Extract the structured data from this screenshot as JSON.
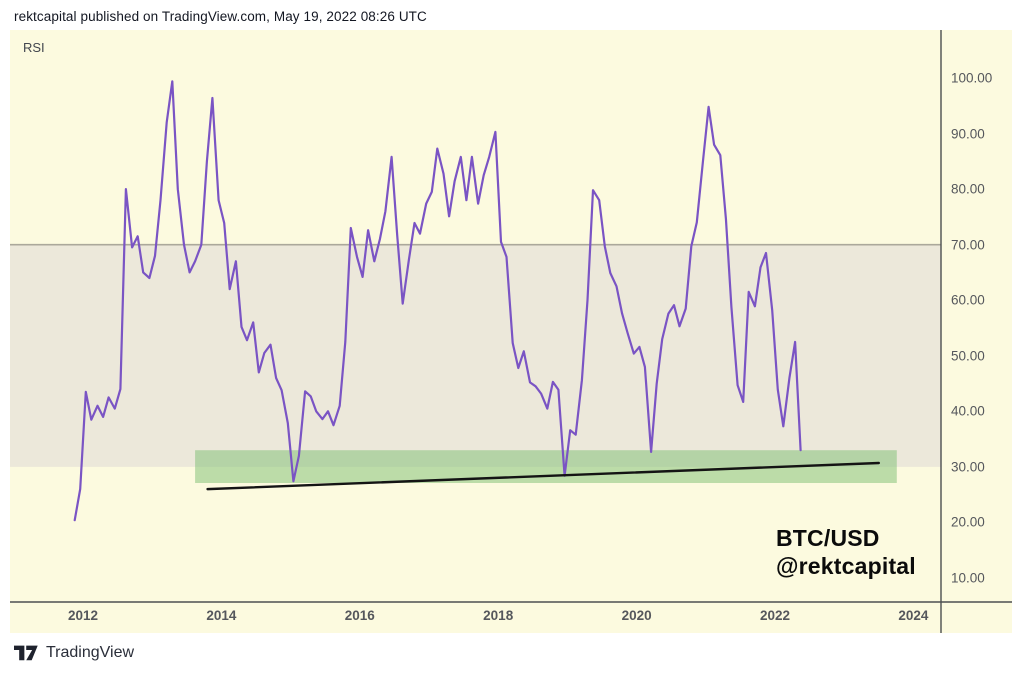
{
  "header": {
    "attribution": "rektcapital published on TradingView.com, May 19, 2022 08:26 UTC"
  },
  "chart": {
    "indicator_label": "RSI",
    "watermark_symbol": "BTC/USD",
    "watermark_handle": "@rektcapital",
    "colors": {
      "background": "#FCFADF",
      "band_fill": "#ECE8DA",
      "rsi_line": "#7A54C4",
      "overbought_line": "#ABA89B",
      "green_zone": "#7CBE72",
      "green_zone_opacity": 0.5,
      "trendline": "#141414",
      "axis_line": "#4c4e50",
      "tick_text": "#55575c"
    }
  },
  "chart_data": {
    "type": "line",
    "title": "",
    "xlabel": "",
    "ylabel": "",
    "legend": "none",
    "grid": "off",
    "xlim": [
      2010.95,
      2024.4
    ],
    "ylim": [
      5.7,
      108.6
    ],
    "x_ticks": [
      2012,
      2014,
      2016,
      2018,
      2020,
      2022,
      2024
    ],
    "x_tick_labels": [
      "2012",
      "2014",
      "2016",
      "2018",
      "2020",
      "2022",
      "2024"
    ],
    "y_ticks": [
      100,
      90,
      80,
      70,
      60,
      50,
      40,
      30,
      20,
      10
    ],
    "y_tick_labels": [
      "100.00",
      "90.00",
      "80.00",
      "70.00",
      "60.00",
      "50.00",
      "40.00",
      "30.00",
      "20.00",
      "10.00"
    ],
    "band": {
      "upper": 70,
      "lower": 30
    },
    "overbought_level": 70,
    "green_zone": {
      "year_start": 2013.62,
      "year_end": 2023.76,
      "rsi_top": 33.0,
      "rsi_bottom": 27.1
    },
    "trendline": {
      "year1": 2013.8,
      "rsi1": 26.0,
      "year2": 2023.5,
      "rsi2": 30.7
    },
    "series": [
      {
        "name": "RSI (BTC/USD, monthly)",
        "points": [
          [
            2011.88,
            20.4
          ],
          [
            2011.96,
            26
          ],
          [
            2012.04,
            43.5
          ],
          [
            2012.12,
            38.5
          ],
          [
            2012.21,
            41
          ],
          [
            2012.29,
            39
          ],
          [
            2012.37,
            42.5
          ],
          [
            2012.46,
            40.5
          ],
          [
            2012.54,
            44
          ],
          [
            2012.62,
            80
          ],
          [
            2012.71,
            69.5
          ],
          [
            2012.79,
            71.5
          ],
          [
            2012.87,
            65
          ],
          [
            2012.96,
            64
          ],
          [
            2013.04,
            68
          ],
          [
            2013.12,
            78
          ],
          [
            2013.21,
            92
          ],
          [
            2013.29,
            99.4
          ],
          [
            2013.37,
            80
          ],
          [
            2013.46,
            70
          ],
          [
            2013.54,
            65
          ],
          [
            2013.62,
            67
          ],
          [
            2013.71,
            70
          ],
          [
            2013.79,
            85
          ],
          [
            2013.87,
            96.4
          ],
          [
            2013.96,
            78
          ],
          [
            2014.04,
            73.9
          ],
          [
            2014.12,
            62
          ],
          [
            2014.21,
            67
          ],
          [
            2014.29,
            55.2
          ],
          [
            2014.37,
            52.8
          ],
          [
            2014.46,
            56
          ],
          [
            2014.54,
            47
          ],
          [
            2014.62,
            50.5
          ],
          [
            2014.71,
            52
          ],
          [
            2014.79,
            46
          ],
          [
            2014.87,
            43.8
          ],
          [
            2014.96,
            37.9
          ],
          [
            2015.04,
            27.4
          ],
          [
            2015.12,
            32
          ],
          [
            2015.21,
            43.6
          ],
          [
            2015.29,
            42.7
          ],
          [
            2015.37,
            40
          ],
          [
            2015.46,
            38.6
          ],
          [
            2015.54,
            40
          ],
          [
            2015.62,
            37.5
          ],
          [
            2015.71,
            41
          ],
          [
            2015.79,
            52.5
          ],
          [
            2015.87,
            73
          ],
          [
            2015.96,
            67.8
          ],
          [
            2016.04,
            64.2
          ],
          [
            2016.12,
            72.6
          ],
          [
            2016.21,
            67
          ],
          [
            2016.29,
            71
          ],
          [
            2016.37,
            76
          ],
          [
            2016.46,
            85.8
          ],
          [
            2016.54,
            71.7
          ],
          [
            2016.62,
            59.4
          ],
          [
            2016.71,
            67.3
          ],
          [
            2016.79,
            73.9
          ],
          [
            2016.87,
            72
          ],
          [
            2016.96,
            77.4
          ],
          [
            2017.04,
            79.5
          ],
          [
            2017.12,
            87.3
          ],
          [
            2017.21,
            82.8
          ],
          [
            2017.29,
            75.1
          ],
          [
            2017.37,
            81.4
          ],
          [
            2017.46,
            85.8
          ],
          [
            2017.54,
            78
          ],
          [
            2017.62,
            85.8
          ],
          [
            2017.71,
            77.4
          ],
          [
            2017.79,
            82.5
          ],
          [
            2017.87,
            85.8
          ],
          [
            2017.96,
            90.3
          ],
          [
            2018.04,
            70.5
          ],
          [
            2018.12,
            67.8
          ],
          [
            2018.21,
            52.3
          ],
          [
            2018.29,
            47.8
          ],
          [
            2018.37,
            50.8
          ],
          [
            2018.46,
            45.2
          ],
          [
            2018.54,
            44.5
          ],
          [
            2018.62,
            43.2
          ],
          [
            2018.71,
            40.5
          ],
          [
            2018.79,
            45.3
          ],
          [
            2018.87,
            43.9
          ],
          [
            2018.96,
            28.4
          ],
          [
            2019.04,
            36.6
          ],
          [
            2019.12,
            35.8
          ],
          [
            2019.21,
            45.6
          ],
          [
            2019.29,
            60
          ],
          [
            2019.37,
            79.8
          ],
          [
            2019.46,
            78
          ],
          [
            2019.54,
            69.7
          ],
          [
            2019.62,
            64.9
          ],
          [
            2019.71,
            62.5
          ],
          [
            2019.79,
            57.6
          ],
          [
            2019.87,
            54.1
          ],
          [
            2019.96,
            50.4
          ],
          [
            2020.04,
            51.6
          ],
          [
            2020.12,
            48
          ],
          [
            2020.21,
            32.7
          ],
          [
            2020.29,
            45
          ],
          [
            2020.37,
            53
          ],
          [
            2020.46,
            57.6
          ],
          [
            2020.54,
            59.1
          ],
          [
            2020.62,
            55.3
          ],
          [
            2020.71,
            58.5
          ],
          [
            2020.79,
            69.7
          ],
          [
            2020.87,
            74
          ],
          [
            2020.96,
            85.1
          ],
          [
            2021.04,
            94.8
          ],
          [
            2021.12,
            88
          ],
          [
            2021.21,
            86.1
          ],
          [
            2021.29,
            74.7
          ],
          [
            2021.37,
            58.8
          ],
          [
            2021.46,
            44.7
          ],
          [
            2021.54,
            41.7
          ],
          [
            2021.62,
            61.5
          ],
          [
            2021.71,
            58.9
          ],
          [
            2021.79,
            65.9
          ],
          [
            2021.87,
            68.5
          ],
          [
            2021.96,
            58.2
          ],
          [
            2022.04,
            43.9
          ],
          [
            2022.12,
            37.3
          ],
          [
            2022.21,
            46.1
          ],
          [
            2022.29,
            52.5
          ],
          [
            2022.37,
            33
          ]
        ]
      }
    ]
  },
  "footer": {
    "brand": "TradingView"
  }
}
